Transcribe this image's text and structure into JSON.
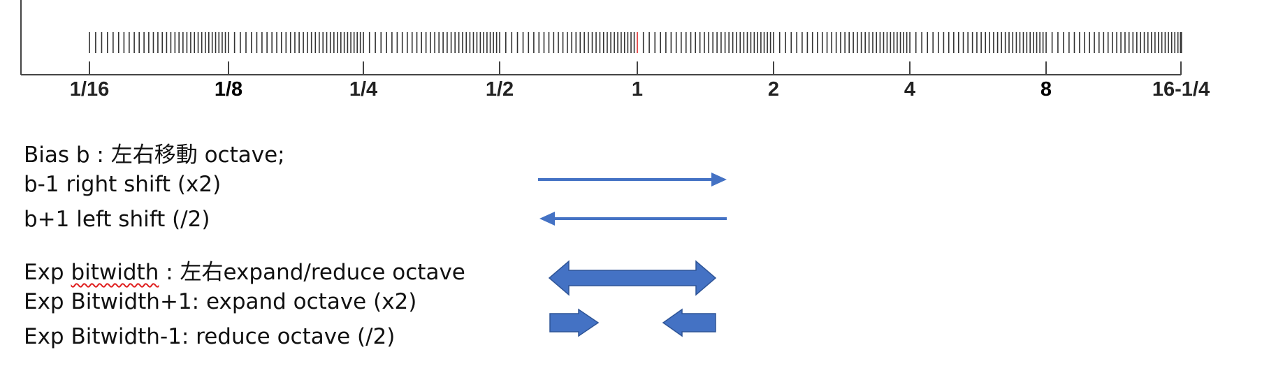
{
  "scale": {
    "tick_labels": [
      "1/16",
      "1/8",
      "1/4",
      "1/2",
      "1",
      "2",
      "4",
      "8",
      "16-1/4"
    ],
    "bar_color": "#333333",
    "highlight_color": "#e03030"
  },
  "notes": {
    "bias_title_prefix": "Bias b : ",
    "bias_title_cjk": "左右移動",
    "bias_title_suffix": " octave;",
    "bias_minus": "b-1 right shift (x2)",
    "bias_plus": "b+1 left shift (/2)",
    "exp_prefix": "Exp ",
    "exp_word": "bitwidth",
    "exp_mid": " : ",
    "exp_cjk": "左右",
    "exp_suffix": "expand/reduce octave",
    "exp_plus": "Exp Bitwidth+1: expand octave (x2)",
    "exp_minus": "Exp Bitwidth-1: reduce octave (/2)"
  },
  "colors": {
    "arrow": "#4472c4",
    "arrow_border": "#2f5597"
  }
}
